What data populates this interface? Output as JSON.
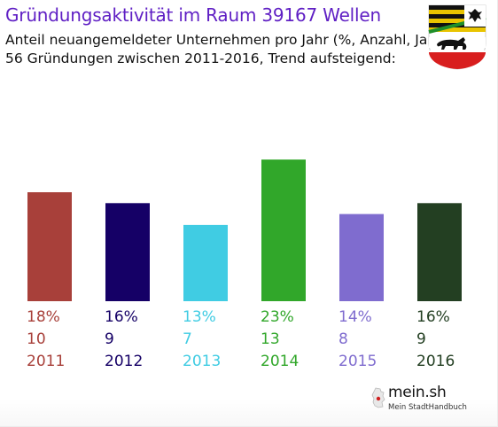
{
  "title": "Gründungsaktivität im Raum 39167 Wellen",
  "subtitle_line1": "Anteil neuangemeldeter Unternehmen pro Jahr (%, Anzahl, Jahr)",
  "subtitle_line2": "56 Gründungen zwischen 2011-2016, Trend aufsteigend:",
  "crest_icon": "coat-of-arms-saxony-anhalt",
  "logo": {
    "name": "mein.sh",
    "tagline": "Mein StadtHandbuch"
  },
  "chart_data": {
    "type": "bar",
    "categories": [
      "2011",
      "2012",
      "2013",
      "2014",
      "2015",
      "2016"
    ],
    "values": [
      10,
      9,
      7,
      13,
      8,
      9
    ],
    "percent_labels": [
      "18%",
      "16%",
      "13%",
      "23%",
      "14%",
      "16%"
    ],
    "count_labels": [
      "10",
      "9",
      "7",
      "13",
      "8",
      "9"
    ],
    "colors": [
      "#a8403a",
      "#150066",
      "#40cce3",
      "#31a72a",
      "#7f6ccf",
      "#233f22"
    ],
    "title": "Gründungsaktivität im Raum 39167 Wellen",
    "xlabel": "",
    "ylabel": "",
    "grid": false,
    "legend": "none"
  }
}
